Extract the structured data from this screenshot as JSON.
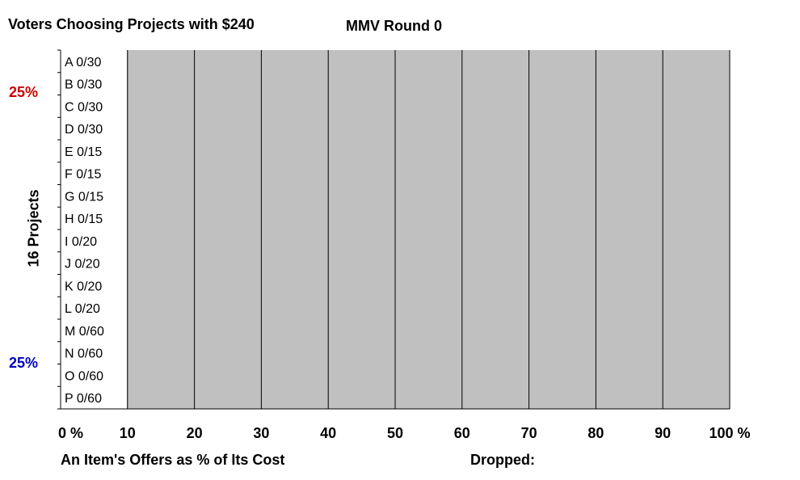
{
  "header": {
    "title": "Voters Choosing Projects with $240",
    "round": "MMV Round 0"
  },
  "side_labels": {
    "top_percent": "25%",
    "bottom_percent": "25%",
    "top_color": "#cc0000",
    "bottom_color": "#0000bb"
  },
  "footer": {
    "xlabel": "An Item's Offers as % of Its Cost",
    "dropped_label": "Dropped:"
  },
  "chart_data": {
    "type": "bar",
    "ylabel": "16 Projects",
    "categories": [
      "A 0/30",
      "B 0/30",
      "C 0/30",
      "D 0/30",
      "E 0/15",
      "F 0/15",
      "G 0/15",
      "H 0/15",
      "I 0/20",
      "J 0/20",
      "K 0/20",
      "L 0/20",
      "M 0/60",
      "N 0/60",
      "O 0/60",
      "P 0/60"
    ],
    "values": [
      0,
      0,
      0,
      0,
      0,
      0,
      0,
      0,
      0,
      0,
      0,
      0,
      0,
      0,
      0,
      0
    ],
    "xlim": [
      0,
      100
    ],
    "xticks": [
      "0 %",
      "10",
      "20",
      "30",
      "40",
      "50",
      "60",
      "70",
      "80",
      "90",
      "100 %"
    ],
    "grid": true,
    "plot_background": "#c0c0c0"
  }
}
